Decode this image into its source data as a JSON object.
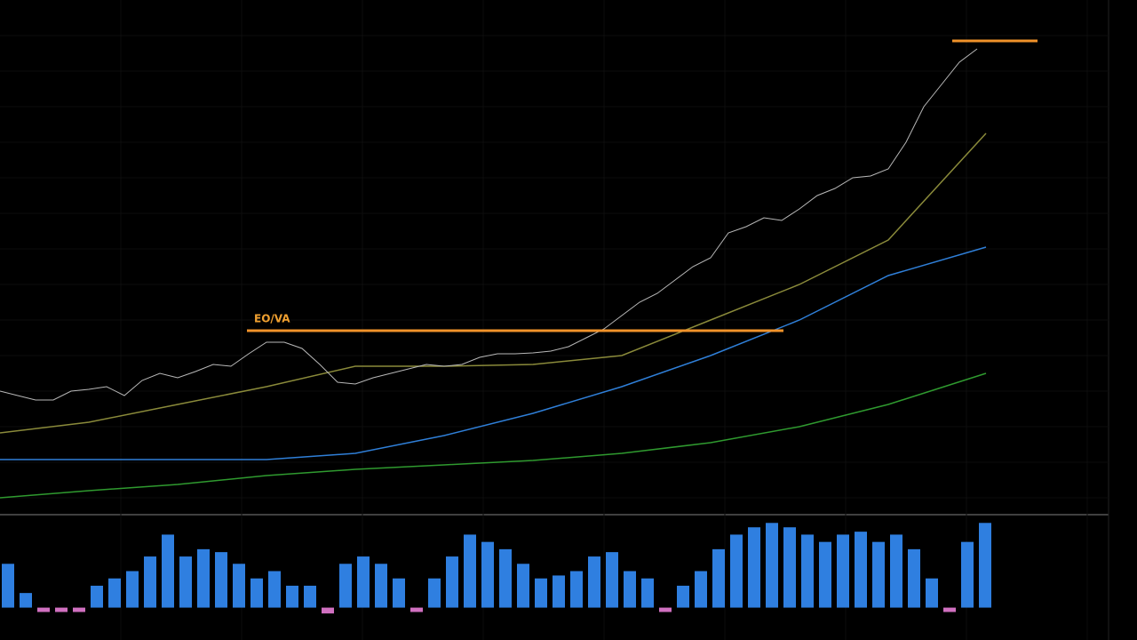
{
  "chart_data": {
    "type": "line",
    "annotation": "EO/VA",
    "xlim": [
      0,
      1248
    ],
    "ylim": [
      0,
      578
    ],
    "grid": true,
    "price": {
      "color": "#b8b8b8",
      "x": [
        0,
        20,
        40,
        60,
        80,
        100,
        120,
        140,
        160,
        180,
        200,
        220,
        240,
        260,
        280,
        300,
        320,
        340,
        360,
        380,
        400,
        420,
        440,
        460,
        480,
        500,
        520,
        540,
        560,
        580,
        600,
        620,
        640,
        660,
        680,
        700,
        720,
        740,
        760,
        780,
        800,
        820,
        840,
        860,
        880,
        900,
        920,
        940,
        960,
        980,
        1000,
        1020,
        1040,
        1060,
        1080,
        1100
      ],
      "values": [
        138,
        133,
        128,
        128,
        138,
        140,
        143,
        133,
        150,
        158,
        153,
        160,
        168,
        166,
        180,
        193,
        193,
        186,
        168,
        148,
        146,
        153,
        158,
        163,
        168,
        166,
        168,
        176,
        180,
        180,
        181,
        183,
        188,
        198,
        208,
        223,
        238,
        248,
        263,
        278,
        288,
        316,
        323,
        333,
        330,
        343,
        358,
        366,
        378,
        380,
        388,
        418,
        458,
        483,
        508,
        523
      ]
    },
    "ma_x": [
      0,
      100,
      200,
      300,
      400,
      500,
      600,
      700,
      800,
      900,
      1000,
      1110
    ],
    "series": [
      {
        "color": "#8a8a3a",
        "values": [
          91,
          103,
          123,
          143,
          166,
          166,
          168,
          178,
          218,
          258,
          308,
          428
        ]
      },
      {
        "color": "#2f7fd8",
        "values": [
          61,
          61,
          61,
          61,
          68,
          88,
          113,
          143,
          178,
          218,
          268,
          300
        ]
      },
      {
        "color": "#2f9a2f",
        "values": [
          18,
          26,
          33,
          43,
          50,
          55,
          60,
          68,
          80,
          98,
          123,
          158
        ]
      }
    ],
    "levels": [
      {
        "color": "#f0922a",
        "value": 206,
        "x": [
          278,
          882
        ]
      },
      {
        "color": "#f0922a",
        "value": 532,
        "x": [
          1072,
          1168
        ]
      }
    ],
    "volume": {
      "ylim": [
        -10,
        60
      ],
      "pos_color": "#2f7fe0",
      "neg_color": "#d070c0",
      "values": [
        30,
        10,
        -3,
        -3,
        -3,
        15,
        20,
        25,
        35,
        50,
        35,
        40,
        38,
        30,
        20,
        25,
        15,
        15,
        -4,
        30,
        35,
        30,
        20,
        -3,
        20,
        35,
        50,
        45,
        40,
        30,
        20,
        22,
        25,
        35,
        38,
        25,
        20,
        -3,
        15,
        25,
        40,
        50,
        55,
        58,
        55,
        50,
        45,
        50,
        52,
        45,
        50,
        40,
        20,
        -3,
        45,
        58
      ]
    }
  }
}
